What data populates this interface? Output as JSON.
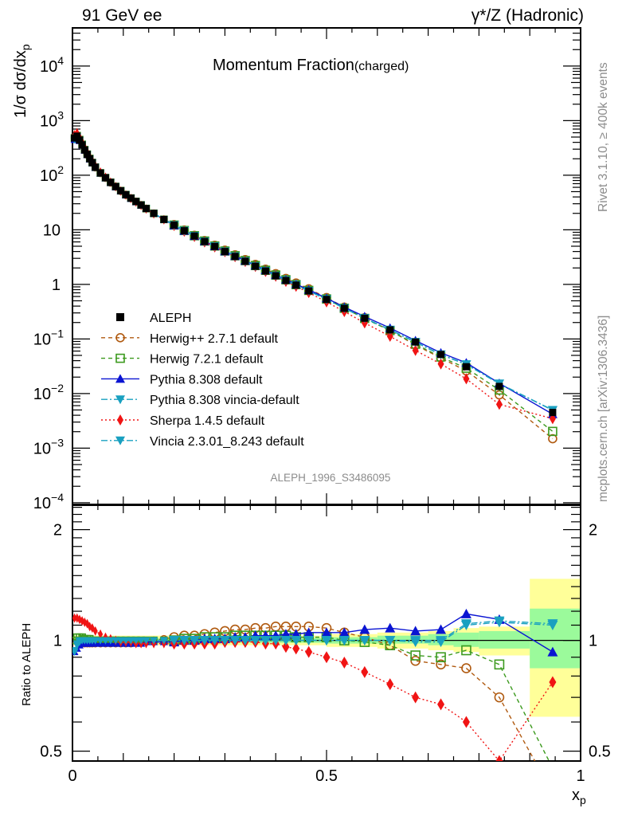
{
  "header": {
    "left": "91 GeV ee",
    "right": "γ*/Z (Hadronic)"
  },
  "side_labels": {
    "top": "Rivet 3.1.10, ≥ 400k events",
    "bottom": "mcplots.cern.ch [arXiv:1306.3436]"
  },
  "chart_data": [
    {
      "type": "scatter",
      "panel": "main",
      "title": "Momentum Fraction",
      "title_suffix": "(charged)",
      "xlabel": "x_p",
      "ylabel": "1/σ dσ/dx_p",
      "yscale": "log",
      "xlim": [
        0,
        1
      ],
      "ylim": [
        9.3e-05,
        50000
      ],
      "grid": false,
      "ytick_labels": [
        {
          "v": 10000,
          "base": "10",
          "exp": "4"
        },
        {
          "v": 1000,
          "base": "10",
          "exp": "3"
        },
        {
          "v": 100,
          "base": "10",
          "exp": "2"
        },
        {
          "v": 10,
          "base": "10",
          "exp": ""
        },
        {
          "v": 1,
          "base": "1",
          "exp": ""
        },
        {
          "v": 0.1,
          "base": "10",
          "exp": "−1"
        },
        {
          "v": 0.01,
          "base": "10",
          "exp": "−2"
        },
        {
          "v": 0.001,
          "base": "10",
          "exp": "−3"
        },
        {
          "v": 0.0001,
          "base": "10",
          "exp": "−4"
        }
      ],
      "watermark": "ALEPH_1996_S3486095",
      "legend_position": "middle-left",
      "x": [
        0.004,
        0.009,
        0.014,
        0.019,
        0.024,
        0.029,
        0.034,
        0.039,
        0.045,
        0.055,
        0.065,
        0.075,
        0.085,
        0.095,
        0.105,
        0.115,
        0.125,
        0.135,
        0.145,
        0.16,
        0.18,
        0.2,
        0.22,
        0.24,
        0.26,
        0.28,
        0.3,
        0.32,
        0.34,
        0.36,
        0.38,
        0.4,
        0.42,
        0.44,
        0.465,
        0.5,
        0.535,
        0.575,
        0.625,
        0.675,
        0.725,
        0.775,
        0.84,
        0.945
      ],
      "series": [
        {
          "name": "ALEPH",
          "style": "data",
          "color": "#000000",
          "marker": "square-filled",
          "line": "none",
          "values": [
            480,
            520,
            440,
            360,
            290,
            240,
            200,
            170,
            140,
            110,
            90,
            74,
            62,
            52,
            44,
            38,
            33,
            28.5,
            24.5,
            20,
            15.5,
            12.2,
            9.6,
            7.7,
            6.1,
            4.95,
            4.0,
            3.25,
            2.65,
            2.15,
            1.76,
            1.44,
            1.18,
            0.97,
            0.76,
            0.53,
            0.365,
            0.24,
            0.147,
            0.088,
            0.052,
            0.031,
            0.0135,
            0.0045
          ]
        },
        {
          "name": "Herwig++ 2.7.1 default",
          "color": "#b05a10",
          "marker": "circle-open",
          "line": "dashed",
          "ratio": [
            1.0,
            0.99,
            0.98,
            0.98,
            0.98,
            0.98,
            0.98,
            0.98,
            0.98,
            0.98,
            0.98,
            0.98,
            0.98,
            0.98,
            0.98,
            0.98,
            0.99,
            0.99,
            0.99,
            1.0,
            1.01,
            1.02,
            1.03,
            1.03,
            1.04,
            1.05,
            1.06,
            1.07,
            1.07,
            1.08,
            1.08,
            1.09,
            1.09,
            1.09,
            1.09,
            1.08,
            1.05,
            1.02,
            0.97,
            0.88,
            0.86,
            0.84,
            0.7,
            0.33
          ]
        },
        {
          "name": "Herwig 7.2.1 default",
          "color": "#3c9a1e",
          "marker": "square-open",
          "line": "dashed",
          "ratio": [
            1.0,
            1.02,
            1.02,
            1.02,
            1.01,
            1.01,
            1.01,
            1.0,
            1.0,
            1.0,
            1.0,
            1.0,
            1.0,
            1.0,
            1.0,
            1.0,
            1.0,
            1.0,
            1.0,
            1.0,
            1.0,
            1.0,
            1.01,
            1.01,
            1.02,
            1.02,
            1.02,
            1.03,
            1.03,
            1.03,
            1.03,
            1.03,
            1.03,
            1.02,
            1.02,
            1.02,
            1.0,
            0.99,
            0.97,
            0.91,
            0.9,
            0.94,
            0.86,
            0.45
          ]
        },
        {
          "name": "Pythia 8.308 default",
          "color": "#0a14d2",
          "marker": "triangle-up-filled",
          "line": "solid",
          "ratio": [
            0.93,
            0.95,
            0.97,
            0.98,
            0.98,
            0.98,
            0.98,
            0.98,
            0.98,
            0.98,
            0.98,
            0.98,
            0.98,
            0.98,
            0.98,
            0.98,
            0.98,
            0.98,
            0.99,
            0.99,
            0.99,
            0.99,
            1.0,
            1.0,
            1.01,
            1.01,
            1.01,
            1.02,
            1.02,
            1.03,
            1.03,
            1.03,
            1.04,
            1.04,
            1.05,
            1.05,
            1.05,
            1.07,
            1.08,
            1.06,
            1.07,
            1.18,
            1.14,
            0.93
          ]
        },
        {
          "name": "Pythia 8.308 vincia-default",
          "color": "#19a0c0",
          "marker": "triangle-down-filled",
          "line": "dashdot",
          "ratio": [
            0.93,
            0.97,
            0.99,
            1.0,
            1.0,
            1.0,
            1.0,
            1.0,
            1.0,
            1.0,
            1.0,
            1.0,
            1.0,
            1.0,
            1.0,
            1.0,
            1.0,
            1.0,
            1.0,
            1.0,
            1.0,
            1.0,
            1.0,
            1.0,
            1.0,
            1.0,
            1.0,
            1.0,
            1.0,
            1.0,
            1.0,
            1.0,
            1.0,
            1.0,
            1.0,
            1.0,
            1.0,
            1.0,
            1.0,
            0.99,
            0.99,
            1.1,
            1.12,
            1.1
          ]
        },
        {
          "name": "Sherpa 1.4.5 default",
          "color": "#f01414",
          "marker": "diamond-filled",
          "line": "dotted",
          "ratio": [
            1.15,
            1.15,
            1.14,
            1.13,
            1.12,
            1.11,
            1.09,
            1.08,
            1.06,
            1.04,
            1.02,
            1.01,
            1.0,
            0.99,
            0.99,
            0.99,
            0.98,
            0.98,
            0.98,
            0.98,
            0.98,
            0.98,
            0.98,
            0.98,
            0.98,
            0.98,
            0.99,
            0.99,
            0.99,
            0.99,
            0.98,
            0.98,
            0.96,
            0.95,
            0.93,
            0.9,
            0.87,
            0.82,
            0.76,
            0.7,
            0.67,
            0.6,
            0.47,
            0.77
          ]
        },
        {
          "name": "Vincia 2.3.01_8.243 default",
          "color": "#19a0c0",
          "marker": "triangle-down-filled",
          "line": "dashdot",
          "ratio": [
            0.94,
            0.98,
            1.0,
            1.0,
            1.0,
            1.0,
            1.0,
            1.0,
            1.0,
            1.0,
            1.0,
            1.0,
            1.0,
            1.0,
            1.0,
            1.0,
            1.0,
            1.0,
            1.0,
            1.0,
            1.0,
            1.0,
            1.0,
            1.0,
            1.0,
            1.0,
            1.0,
            1.0,
            1.0,
            1.0,
            1.0,
            1.0,
            1.0,
            1.0,
            1.0,
            1.0,
            1.0,
            1.0,
            1.0,
            1.0,
            1.0,
            1.11,
            1.13,
            1.11
          ]
        }
      ]
    },
    {
      "type": "scatter",
      "panel": "ratio",
      "xlabel": "x_p",
      "ylabel": "Ratio to ALEPH",
      "yscale": "log",
      "xlim": [
        0,
        1
      ],
      "ylim": [
        0.47,
        2.33
      ],
      "ytick_labels": [
        {
          "v": 2,
          "label": "2"
        },
        {
          "v": 1,
          "label": "1"
        },
        {
          "v": 0.5,
          "label": "0.5"
        }
      ],
      "xtick_labels": [
        {
          "v": 0,
          "label": "0"
        },
        {
          "v": 0.5,
          "label": "0.5"
        },
        {
          "v": 1,
          "label": "1"
        }
      ],
      "uncertainty_bands": {
        "inner_color": "#9bfa9b",
        "outer_color": "#ffff99",
        "bins": [
          {
            "x0": 0.0,
            "x1": 0.5,
            "inner": [
              0.985,
              1.015
            ],
            "outer": [
              0.97,
              1.03
            ]
          },
          {
            "x0": 0.5,
            "x1": 0.6,
            "inner": [
              0.98,
              1.02
            ],
            "outer": [
              0.96,
              1.04
            ]
          },
          {
            "x0": 0.6,
            "x1": 0.7,
            "inner": [
              0.98,
              1.03
            ],
            "outer": [
              0.95,
              1.05
            ]
          },
          {
            "x0": 0.7,
            "x1": 0.75,
            "inner": [
              0.97,
              1.04
            ],
            "outer": [
              0.94,
              1.06
            ]
          },
          {
            "x0": 0.75,
            "x1": 0.8,
            "inner": [
              0.96,
              1.05
            ],
            "outer": [
              0.93,
              1.08
            ]
          },
          {
            "x0": 0.8,
            "x1": 0.9,
            "inner": [
              0.95,
              1.06
            ],
            "outer": [
              0.91,
              1.09
            ]
          },
          {
            "x0": 0.9,
            "x1": 1.0,
            "inner": [
              0.84,
              1.22
            ],
            "outer": [
              0.62,
              1.47
            ]
          }
        ]
      }
    }
  ]
}
